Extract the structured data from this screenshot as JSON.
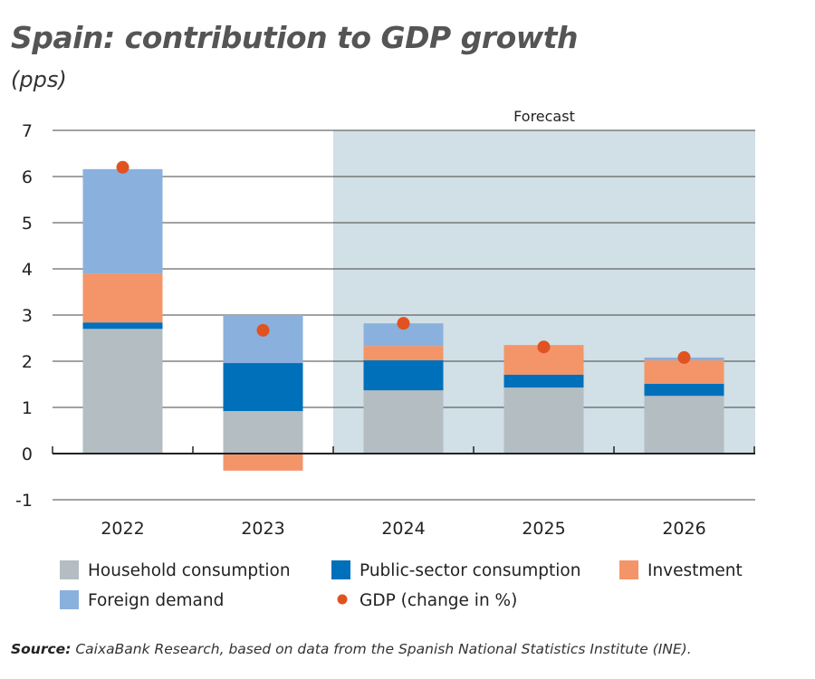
{
  "chart_data": {
    "type": "bar",
    "stacked": true,
    "title": "Spain: contribution to GDP growth",
    "subtitle": "(pps)",
    "categories": [
      "2022",
      "2023",
      "2024",
      "2025",
      "2026"
    ],
    "ylim": [
      -1,
      7
    ],
    "yticks": [
      -1,
      0,
      1,
      2,
      3,
      4,
      5,
      6,
      7
    ],
    "grid": true,
    "annotation": "Forecast",
    "forecast_categories": [
      "2024",
      "2025",
      "2026"
    ],
    "series": [
      {
        "name": "Household consumption",
        "color": "#b3bdc2",
        "values": [
          2.7,
          0.92,
          1.37,
          1.43,
          1.25
        ]
      },
      {
        "name": "Public-sector consumption",
        "color": "#0070ba",
        "values": [
          0.14,
          1.04,
          0.65,
          0.28,
          0.26
        ]
      },
      {
        "name": "Investment",
        "color": "#f39568",
        "values": [
          1.06,
          -0.37,
          0.31,
          0.64,
          0.51
        ]
      },
      {
        "name": "Foreign demand",
        "color": "#8ab0de",
        "values": [
          2.26,
          1.04,
          0.49,
          0.0,
          0.06
        ]
      }
    ],
    "gdp": {
      "name": "GDP (change in %)",
      "color": "#e05320",
      "values": [
        6.2,
        2.67,
        2.82,
        2.31,
        2.08
      ]
    },
    "legend_position": "bottom"
  },
  "source": {
    "label": "Source:",
    "text": " CaixaBank Research, based on data from the Spanish National Statistics Institute (INE)."
  }
}
